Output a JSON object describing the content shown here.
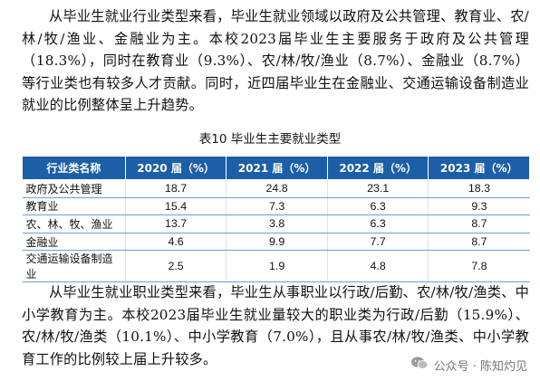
{
  "paragraph_1": "从毕业生就业行业类型来看，毕业生就业领域以政府及公共管理、教育业、农/林/牧/渔业、金融业为主。本校2023届毕业生主要服务于政府及公共管理（18.3%），同时在教育业（9.3%）、农/林/牧/渔业（8.7%）、金融业（8.7%）等行业类也有较多人才贡献。同时，近四届毕业生在金融业、交通运输设备制造业就业的比例整体呈上升趋势。",
  "table_caption": "表10 毕业生主要就业类型",
  "table": {
    "headers": [
      "行业类名称",
      "2020 届（%）",
      "2021 届（%）",
      "2022 届（%）",
      "2023 届（%）"
    ],
    "rows": [
      [
        "政府及公共管理",
        "18.7",
        "24.8",
        "23.1",
        "18.3"
      ],
      [
        "教育业",
        "15.4",
        "7.3",
        "6.3",
        "9.3"
      ],
      [
        "农、林、牧、渔业",
        "13.7",
        "3.8",
        "6.3",
        "8.7"
      ],
      [
        "金融业",
        "4.6",
        "9.9",
        "7.7",
        "8.7"
      ],
      [
        "交通运输设备制造业",
        "2.5",
        "1.9",
        "4.8",
        "7.8"
      ]
    ]
  },
  "paragraph_2": "从毕业生就业职业类型来看，毕业生从事职业以行政/后勤、农/林/牧/渔类、中小学教育为主。本校2023届毕业生就业量较大的职业类为行政/后勤（15.9%）、农/林/牧/渔类（10.1%）、中小学教育（7.0%），且从事农/林/牧/渔类、中小学教育工作的比例较上届上升较多。",
  "watermark": {
    "text": "公众号 · 陈知灼见",
    "icon": "wechat-icon"
  },
  "colors": {
    "header_bg": "#1d5fa6",
    "header_text": "#ffffff",
    "row_border": "#6a9fd6"
  }
}
